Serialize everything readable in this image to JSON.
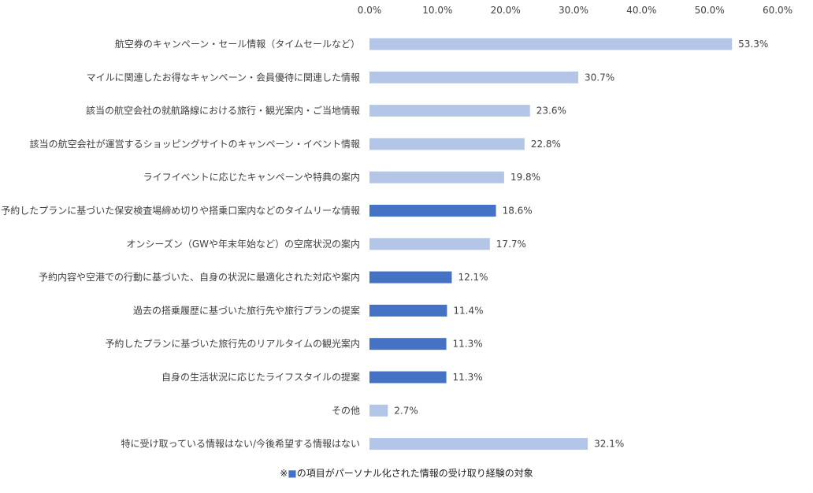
{
  "chart_data": {
    "type": "bar",
    "orientation": "horizontal",
    "xlim": [
      0,
      60
    ],
    "ticks": [
      0,
      10,
      20,
      30,
      40,
      50,
      60
    ],
    "tick_labels": [
      "0.0%",
      "10.0%",
      "20.0%",
      "30.0%",
      "40.0%",
      "50.0%",
      "60.0%"
    ],
    "axis_position": "top",
    "grid": false,
    "colors": {
      "normal": "#b4c6e7",
      "highlight": "#4472c4"
    },
    "categories": [
      "航空券のキャンペーン・セール情報（タイムセールなど）",
      "マイルに関連したお得なキャンペーン・会員優待に関連した情報",
      "該当の航空会社の就航路線における旅行・観光案内・ご当地情報",
      "該当の航空会社が運営するショッピングサイトのキャンペーン・イベント情報",
      "ライフイベントに応じたキャンペーンや特典の案内",
      "予約したプランに基づいた保安検査場締め切りや搭乗口案内などのタイムリーな情報",
      "オンシーズン（GWや年末年始など）の空席状況の案内",
      "予約内容や空港での行動に基づいた、自身の状況に最適化された対応や案内",
      "過去の搭乗履歴に基づいた旅行先や旅行プランの提案",
      "予約したプランに基づいた旅行先のリアルタイムの観光案内",
      "自身の生活状況に応じたライフスタイルの提案",
      "その他",
      "特に受け取っている情報はない/今後希望する情報はない"
    ],
    "values": [
      53.3,
      30.7,
      23.6,
      22.8,
      19.8,
      18.6,
      17.7,
      12.1,
      11.4,
      11.3,
      11.3,
      2.7,
      32.1
    ],
    "value_labels": [
      "53.3%",
      "30.7%",
      "23.6%",
      "22.8%",
      "19.8%",
      "18.6%",
      "17.7%",
      "12.1%",
      "11.4%",
      "11.3%",
      "11.3%",
      "2.7%",
      "32.1%"
    ],
    "highlighted": [
      false,
      false,
      false,
      false,
      false,
      true,
      false,
      true,
      true,
      true,
      true,
      false,
      false
    ],
    "note": {
      "prefix": "※",
      "marker": "■",
      "text": "の項目がパーソナル化された情報の受け取り経験の対象"
    }
  }
}
